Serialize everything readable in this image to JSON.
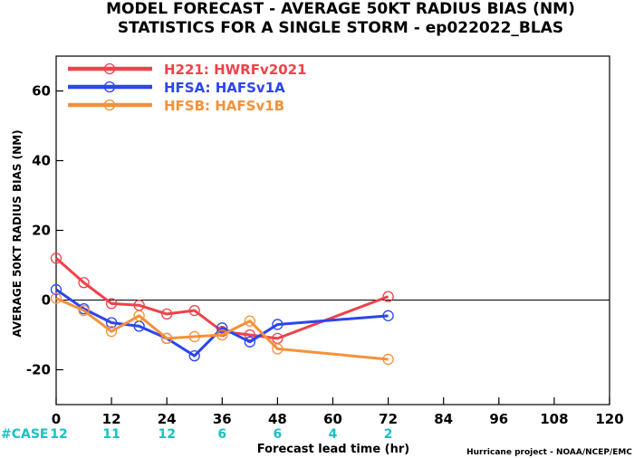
{
  "chart_data": {
    "type": "line",
    "title": "MODEL FORECAST - AVERAGE 50KT RADIUS BIAS (NM)",
    "subtitle": "STATISTICS FOR A SINGLE STORM - ep022022_BLAS",
    "xlabel": "Forecast lead time (hr)",
    "ylabel": "AVERAGE 50KT RADIUS BIAS (NM)",
    "xlim": [
      0,
      120
    ],
    "ylim": [
      -30,
      70
    ],
    "x_ticks": [
      0,
      12,
      24,
      36,
      48,
      60,
      72,
      84,
      96,
      108,
      120
    ],
    "y_ticks": [
      -20,
      0,
      20,
      40,
      60
    ],
    "zero_line": true,
    "legend_position": "top-left",
    "series": [
      {
        "name": "H221: HWRFv2021",
        "color": "#f0424a",
        "points": [
          [
            0,
            12
          ],
          [
            6,
            5
          ],
          [
            12,
            -1
          ],
          [
            18,
            -1.5
          ],
          [
            24,
            -4
          ],
          [
            30,
            -3
          ],
          [
            36,
            -9
          ],
          [
            42,
            -10
          ],
          [
            48,
            -11
          ],
          [
            72,
            1
          ]
        ]
      },
      {
        "name": "HFSA: HAFSv1A",
        "color": "#2b45f0",
        "points": [
          [
            0,
            3
          ],
          [
            6,
            -2.5
          ],
          [
            12,
            -6.5
          ],
          [
            18,
            -7.5
          ],
          [
            24,
            -11
          ],
          [
            30,
            -16
          ],
          [
            36,
            -8
          ],
          [
            42,
            -12
          ],
          [
            48,
            -7
          ],
          [
            72,
            -4.5
          ]
        ]
      },
      {
        "name": "HFSB: HAFSv1B",
        "color": "#f5913a",
        "points": [
          [
            0,
            0.5
          ],
          [
            6,
            -3
          ],
          [
            12,
            -9
          ],
          [
            18,
            -4.5
          ],
          [
            24,
            -11
          ],
          [
            30,
            -10.5
          ],
          [
            36,
            -10
          ],
          [
            42,
            -6
          ],
          [
            48,
            -14
          ],
          [
            72,
            -17
          ]
        ]
      }
    ],
    "case_label": "#CASE",
    "case_color": "#17c2c2",
    "cases": [
      {
        "x": 0,
        "n": "12"
      },
      {
        "x": 12,
        "n": "11"
      },
      {
        "x": 24,
        "n": "12"
      },
      {
        "x": 36,
        "n": "6"
      },
      {
        "x": 48,
        "n": "6"
      },
      {
        "x": 60,
        "n": "4"
      },
      {
        "x": 72,
        "n": "2"
      }
    ],
    "credit": "Hurricane project - NOAA/NCEP/EMC"
  }
}
